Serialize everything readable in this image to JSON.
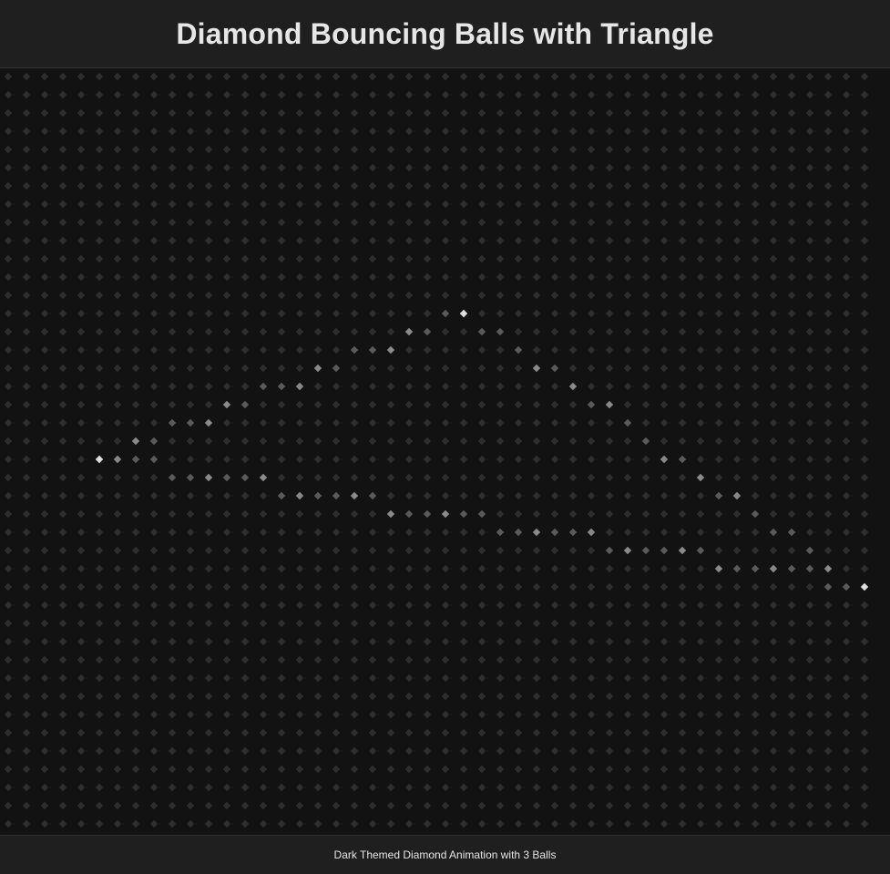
{
  "header": {
    "title": "Diamond Bouncing Balls with Triangle"
  },
  "footer": {
    "text": "Dark Themed Diamond Animation with 3 Balls"
  },
  "colors": {
    "background": "#121212",
    "bar_background": "#1f1f1f",
    "diamond_idle": "#2e2e2e",
    "diamond_mid": "#5a5a5a",
    "diamond_lit": "#8a8a8a",
    "diamond_ball": "#e0e0e0",
    "text": "#e6e6e6"
  },
  "game": {
    "grid": {
      "columns": 48,
      "rows": 42
    },
    "balls": [
      {
        "name": "ball-1",
        "col": 25,
        "row": 13
      },
      {
        "name": "ball-2",
        "col": 5,
        "row": 21
      },
      {
        "name": "ball-3",
        "col": 47,
        "row": 28
      }
    ],
    "triangle_vertices": [
      {
        "col": 25,
        "row": 13
      },
      {
        "col": 5,
        "row": 21
      },
      {
        "col": 47,
        "row": 28
      }
    ],
    "lit_cells": [
      [
        24,
        13
      ],
      [
        25,
        13
      ],
      [
        22,
        14
      ],
      [
        23,
        14
      ],
      [
        26,
        14
      ],
      [
        27,
        14
      ],
      [
        19,
        15
      ],
      [
        20,
        15
      ],
      [
        21,
        15
      ],
      [
        28,
        15
      ],
      [
        17,
        16
      ],
      [
        18,
        16
      ],
      [
        29,
        16
      ],
      [
        30,
        16
      ],
      [
        14,
        17
      ],
      [
        15,
        17
      ],
      [
        16,
        17
      ],
      [
        31,
        17
      ],
      [
        12,
        18
      ],
      [
        13,
        18
      ],
      [
        32,
        18
      ],
      [
        33,
        18
      ],
      [
        9,
        19
      ],
      [
        10,
        19
      ],
      [
        11,
        19
      ],
      [
        34,
        19
      ],
      [
        7,
        20
      ],
      [
        8,
        20
      ],
      [
        35,
        20
      ],
      [
        5,
        21
      ],
      [
        6,
        21
      ],
      [
        7,
        21
      ],
      [
        8,
        21
      ],
      [
        36,
        21
      ],
      [
        37,
        21
      ],
      [
        9,
        22
      ],
      [
        10,
        22
      ],
      [
        11,
        22
      ],
      [
        12,
        22
      ],
      [
        13,
        22
      ],
      [
        14,
        22
      ],
      [
        38,
        22
      ],
      [
        15,
        23
      ],
      [
        16,
        23
      ],
      [
        17,
        23
      ],
      [
        18,
        23
      ],
      [
        19,
        23
      ],
      [
        20,
        23
      ],
      [
        39,
        23
      ],
      [
        40,
        23
      ],
      [
        21,
        24
      ],
      [
        22,
        24
      ],
      [
        23,
        24
      ],
      [
        24,
        24
      ],
      [
        25,
        24
      ],
      [
        26,
        24
      ],
      [
        41,
        24
      ],
      [
        27,
        25
      ],
      [
        28,
        25
      ],
      [
        29,
        25
      ],
      [
        30,
        25
      ],
      [
        31,
        25
      ],
      [
        32,
        25
      ],
      [
        42,
        25
      ],
      [
        43,
        25
      ],
      [
        33,
        26
      ],
      [
        34,
        26
      ],
      [
        35,
        26
      ],
      [
        36,
        26
      ],
      [
        37,
        26
      ],
      [
        38,
        26
      ],
      [
        44,
        26
      ],
      [
        39,
        27
      ],
      [
        40,
        27
      ],
      [
        41,
        27
      ],
      [
        42,
        27
      ],
      [
        43,
        27
      ],
      [
        44,
        27
      ],
      [
        45,
        27
      ],
      [
        45,
        28
      ],
      [
        46,
        28
      ],
      [
        47,
        28
      ]
    ]
  }
}
